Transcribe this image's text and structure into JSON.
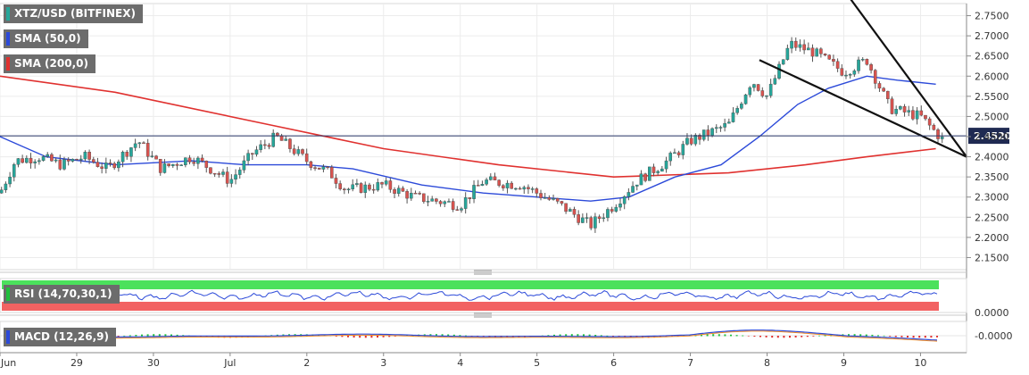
{
  "chart_data": {
    "type": "candlestick",
    "instrument": "XTZ/USD (BITFINEX)",
    "legend": {
      "price": "XTZ/USD (BITFINEX)",
      "sma50": "SMA (50,0)",
      "sma200": "SMA (200,0)",
      "rsi": "RSI (14,70,30,1)",
      "macd": "MACD (12,26,9)"
    },
    "price_axis": {
      "min": 2.12,
      "max": 2.78,
      "ticks": [
        "2.7500",
        "2.7000",
        "2.6500",
        "2.6000",
        "2.5500",
        "2.5000",
        "2.4500",
        "2.4000",
        "2.3500",
        "2.3000",
        "2.2500",
        "2.2000",
        "2.1500"
      ]
    },
    "last_price": "2.4520",
    "time_axis": {
      "min": 0,
      "max": 12.6,
      "ticks": [
        {
          "label": "Jun",
          "x": 0.0
        },
        {
          "label": "29",
          "x": 1.0
        },
        {
          "label": "30",
          "x": 2.0
        },
        {
          "label": "Jul",
          "x": 3.0
        },
        {
          "label": "2",
          "x": 4.0
        },
        {
          "label": "3",
          "x": 5.0
        },
        {
          "label": "4",
          "x": 6.0
        },
        {
          "label": "5",
          "x": 7.0
        },
        {
          "label": "6",
          "x": 8.0
        },
        {
          "label": "7",
          "x": 9.0
        },
        {
          "label": "8",
          "x": 10.0
        },
        {
          "label": "9",
          "x": 11.0
        },
        {
          "label": "10",
          "x": 12.0
        }
      ]
    },
    "anchors": [
      [
        0.0,
        2.31
      ],
      [
        0.2,
        2.39
      ],
      [
        0.5,
        2.4
      ],
      [
        0.8,
        2.38
      ],
      [
        1.1,
        2.4
      ],
      [
        1.4,
        2.37
      ],
      [
        1.8,
        2.44
      ],
      [
        2.1,
        2.37
      ],
      [
        2.5,
        2.4
      ],
      [
        3.0,
        2.34
      ],
      [
        3.3,
        2.41
      ],
      [
        3.6,
        2.45
      ],
      [
        4.0,
        2.39
      ],
      [
        4.3,
        2.36
      ],
      [
        4.5,
        2.32
      ],
      [
        4.6,
        2.32
      ],
      [
        5.0,
        2.33
      ],
      [
        5.4,
        2.3
      ],
      [
        6.0,
        2.28
      ],
      [
        6.3,
        2.34
      ],
      [
        6.8,
        2.33
      ],
      [
        7.3,
        2.28
      ],
      [
        7.7,
        2.23
      ],
      [
        8.0,
        2.28
      ],
      [
        8.3,
        2.34
      ],
      [
        8.7,
        2.39
      ],
      [
        9.0,
        2.44
      ],
      [
        9.5,
        2.48
      ],
      [
        9.8,
        2.59
      ],
      [
        10.0,
        2.55
      ],
      [
        10.3,
        2.68
      ],
      [
        10.6,
        2.66
      ],
      [
        11.0,
        2.61
      ],
      [
        11.3,
        2.64
      ],
      [
        11.6,
        2.52
      ],
      [
        12.0,
        2.5
      ],
      [
        12.3,
        2.44
      ]
    ],
    "sma50": [
      [
        0.0,
        2.45
      ],
      [
        0.6,
        2.4
      ],
      [
        1.5,
        2.38
      ],
      [
        2.5,
        2.39
      ],
      [
        3.2,
        2.38
      ],
      [
        4.0,
        2.38
      ],
      [
        4.6,
        2.37
      ],
      [
        5.5,
        2.33
      ],
      [
        6.3,
        2.31
      ],
      [
        7.0,
        2.3
      ],
      [
        7.7,
        2.29
      ],
      [
        8.2,
        2.3
      ],
      [
        8.8,
        2.35
      ],
      [
        9.4,
        2.38
      ],
      [
        9.9,
        2.45
      ],
      [
        10.4,
        2.53
      ],
      [
        10.8,
        2.57
      ],
      [
        11.3,
        2.6
      ],
      [
        11.7,
        2.59
      ],
      [
        12.2,
        2.58
      ]
    ],
    "sma200": [
      [
        0.0,
        2.6
      ],
      [
        1.5,
        2.56
      ],
      [
        3.5,
        2.48
      ],
      [
        5.0,
        2.42
      ],
      [
        6.5,
        2.38
      ],
      [
        8.0,
        2.35
      ],
      [
        9.5,
        2.36
      ],
      [
        10.5,
        2.38
      ],
      [
        11.3,
        2.4
      ],
      [
        12.2,
        2.42
      ]
    ],
    "trendlines": [
      {
        "from": [
          9.9,
          2.64
        ],
        "to": [
          12.6,
          2.4
        ]
      },
      {
        "from": [
          10.9,
          2.84
        ],
        "to": [
          12.6,
          2.4
        ]
      }
    ],
    "macd_axis": {
      "ticks": [
        "0.0000",
        "-0.0000"
      ]
    },
    "series": [
      {
        "name": "XTZ/USD (BITFINEX)",
        "color": "#26a69a"
      },
      {
        "name": "SMA (50,0)",
        "color": "#2c4ad9"
      },
      {
        "name": "SMA (200,0)",
        "color": "#e0312f"
      }
    ]
  }
}
